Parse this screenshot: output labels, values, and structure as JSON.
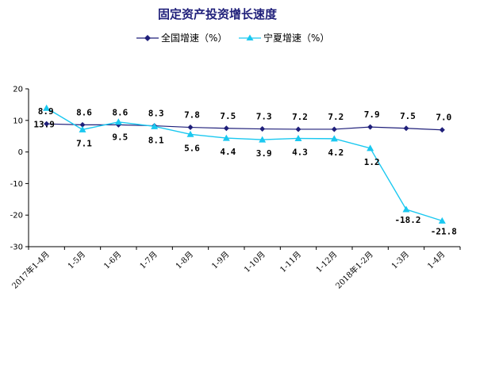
{
  "chart_data": {
    "type": "line",
    "title": "固定资产投资增长速度",
    "xlabel": "",
    "ylabel": "",
    "categories": [
      "2017年1-4月",
      "1-5月",
      "1-6月",
      "1-7月",
      "1-8月",
      "1-9月",
      "1-10月",
      "1-11月",
      "1-12月",
      "2018年1-2月",
      "1-3月",
      "1-4月"
    ],
    "series": [
      {
        "name": "全国增速（%）",
        "values": [
          8.9,
          8.6,
          8.6,
          8.3,
          7.8,
          7.5,
          7.3,
          7.2,
          7.2,
          7.9,
          7.5,
          7.0
        ],
        "labels": [
          "8.9",
          "8.6",
          "8.6",
          "8.3",
          "7.8",
          "7.5",
          "7.3",
          "7.2",
          "7.2",
          "7.9",
          "7.5",
          "7.0"
        ],
        "marker": "diamond",
        "color": "#1F1F7A"
      },
      {
        "name": "宁夏增速（%）",
        "values": [
          13.9,
          7.1,
          9.5,
          8.1,
          5.6,
          4.4,
          3.9,
          4.3,
          4.2,
          1.2,
          -18.2,
          -21.8
        ],
        "labels": [
          "13.9",
          "7.1",
          "9.5",
          "8.1",
          "5.6",
          "4.4",
          "3.9",
          "4.3",
          "4.2",
          "1.2",
          "-18.2",
          "-21.8"
        ],
        "marker": "triangle",
        "color": "#1AC8F0"
      }
    ],
    "ylim": [
      -30,
      20
    ],
    "yticks": [
      "20",
      "10",
      "0",
      "-10",
      "-20",
      "-30"
    ],
    "ytick_values": [
      20,
      10,
      0,
      -10,
      -20,
      -30
    ],
    "grid": false,
    "legend_position": "top-center",
    "title_color": "#1F1F7A"
  }
}
